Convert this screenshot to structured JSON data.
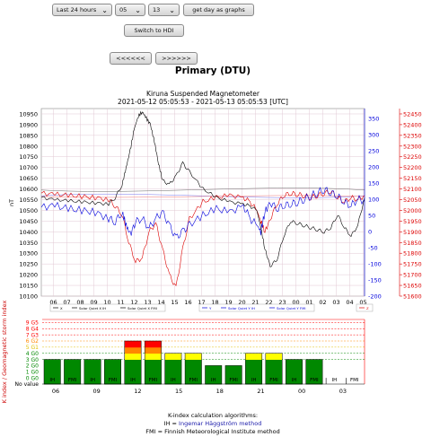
{
  "controls": {
    "range_select": "Last 24 hours",
    "hour_select": "05",
    "day_select": "13",
    "graph_button": "get day as graphs",
    "hdi_button": "Switch to HDI",
    "prev_button": "<<<<<<",
    "next_button": ">>>>>>"
  },
  "heading": "Primary (DTU)",
  "chart_data": [
    {
      "type": "line",
      "title": "Kiruna Suspended Magnetometer",
      "subtitle": "2021-05-12 05:05:53 - 2021-05-13 05:05:53 [UTC]",
      "ylabel": "nT",
      "x_ticks": [
        "06",
        "07",
        "08",
        "09",
        "10",
        "11",
        "12",
        "13",
        "14",
        "15",
        "16",
        "17",
        "18",
        "19",
        "20",
        "21",
        "22",
        "23",
        "00",
        "01",
        "02",
        "03",
        "04",
        "05"
      ],
      "y_left": {
        "ticks": [
          10100,
          10150,
          10200,
          10250,
          10300,
          10350,
          10400,
          10450,
          10500,
          10550,
          10600,
          10650,
          10700,
          10750,
          10800,
          10850,
          10900,
          10950
        ],
        "color": "#000000"
      },
      "y_mid": {
        "ticks": [
          -200,
          -150,
          -100,
          -50,
          0,
          50,
          100,
          150,
          200,
          250,
          300,
          350
        ],
        "color": "#0000dd"
      },
      "y_right": {
        "ticks": [
          51600,
          51650,
          51700,
          51750,
          51800,
          51850,
          51900,
          51950,
          52000,
          52050,
          52100,
          52150,
          52200,
          52250,
          52300,
          52350,
          52400,
          52450
        ],
        "color": "#dd0000"
      },
      "legend": [
        {
          "label": "X",
          "color": "#000000"
        },
        {
          "label": "Solar Quiet X IH",
          "color": "#000000"
        },
        {
          "label": "Solar Quiet X FMI",
          "color": "#000000"
        },
        {
          "label": "Y",
          "color": "#0000dd"
        },
        {
          "label": "Solar Quiet Y IH",
          "color": "#0000dd"
        },
        {
          "label": "Solar Quiet Y FMI",
          "color": "#0000dd"
        },
        {
          "label": "Z",
          "color": "#dd0000"
        }
      ],
      "series": {
        "x": {
          "color": "#000000",
          "hours": [
            0,
            1,
            2,
            3,
            4,
            5,
            5.5,
            6,
            6.3,
            6.6,
            6.9,
            7.2,
            7.5,
            7.8,
            8.1,
            8.4,
            8.7,
            9,
            9.5,
            10,
            10.5,
            11,
            12,
            13,
            14,
            15,
            15.5,
            16,
            16.3,
            16.6,
            17,
            17.5,
            18,
            18.5,
            19,
            19.5,
            20,
            20.5,
            21,
            21.5,
            22,
            22.5,
            23,
            23.5,
            24
          ],
          "values": [
            10560,
            10550,
            10545,
            10540,
            10535,
            10530,
            10560,
            10620,
            10700,
            10780,
            10880,
            10940,
            10960,
            10930,
            10900,
            10820,
            10720,
            10640,
            10620,
            10660,
            10720,
            10680,
            10600,
            10560,
            10540,
            10530,
            10520,
            10500,
            10420,
            10320,
            10240,
            10270,
            10380,
            10450,
            10440,
            10430,
            10420,
            10410,
            10400,
            10420,
            10480,
            10420,
            10380,
            10430,
            10560
          ]
        },
        "y": {
          "color": "#0000dd",
          "hours": [
            0,
            1,
            2,
            3,
            4,
            5,
            5.5,
            6,
            6.3,
            6.6,
            7,
            7.5,
            8,
            8.5,
            9,
            9.5,
            10,
            10.5,
            11,
            12,
            13,
            14,
            15,
            15.5,
            16,
            16.3,
            16.6,
            17,
            17.5,
            18,
            18.5,
            19,
            19.5,
            20,
            20.5,
            21,
            21.5,
            22,
            22.5,
            23,
            23.5,
            24
          ],
          "values": [
            75,
            80,
            70,
            65,
            60,
            40,
            30,
            60,
            20,
            -10,
            30,
            40,
            10,
            40,
            60,
            20,
            -20,
            0,
            20,
            50,
            70,
            60,
            80,
            40,
            20,
            0,
            60,
            90,
            70,
            80,
            85,
            90,
            100,
            110,
            120,
            130,
            120,
            110,
            90,
            80,
            100,
            95
          ]
        },
        "z": {
          "color": "#dd0000",
          "hours": [
            0,
            1,
            2,
            3,
            4,
            5,
            5.5,
            6,
            6.5,
            7,
            7.5,
            8,
            8.5,
            9,
            9.5,
            10,
            10.5,
            11,
            12,
            13,
            14,
            15,
            15.5,
            16,
            16.3,
            16.6,
            17,
            17.5,
            18,
            18.5,
            19,
            19.5,
            20,
            20.5,
            21,
            21.5,
            22,
            22.5,
            23,
            23.5,
            24
          ],
          "values": [
            52080,
            52075,
            52070,
            52065,
            52060,
            52050,
            52020,
            51980,
            51850,
            51760,
            51780,
            51900,
            51940,
            51820,
            51700,
            51640,
            51820,
            51960,
            52040,
            52060,
            52070,
            52060,
            52040,
            52000,
            51950,
            51900,
            51960,
            52030,
            52070,
            52080,
            52075,
            52070,
            52060,
            52070,
            52080,
            52090,
            52060,
            52040,
            52060,
            52050,
            52070
          ]
        }
      },
      "quiet_curves": {
        "x_ih_level": 10595,
        "y_ih_level": 110,
        "z_ih_level": 52065
      }
    },
    {
      "type": "bar",
      "ylabel": "K index / Geomagnetic storm index",
      "y_ticks": [
        "No value",
        "0",
        "1",
        "2",
        "3",
        "4",
        "5",
        "6",
        "7",
        "8",
        "9"
      ],
      "y_tick_labels": [
        "No value",
        "0 G0",
        "1 G0",
        "2 G0",
        "3 G0",
        "4 G0",
        "5 G1",
        "6 G2",
        "7 G3",
        "8 G4",
        "9 G5"
      ],
      "x_ticks": [
        "06",
        "09",
        "12",
        "15",
        "18",
        "21",
        "00",
        "03"
      ],
      "bars": [
        {
          "k": 4,
          "method": "IH"
        },
        {
          "k": 4,
          "method": "FMI"
        },
        {
          "k": 4,
          "method": "IH"
        },
        {
          "k": 4,
          "method": "FMI"
        },
        {
          "k": 7,
          "method": "IH"
        },
        {
          "k": 7,
          "method": "FMI"
        },
        {
          "k": 5,
          "method": "IH"
        },
        {
          "k": 5,
          "method": "FMI"
        },
        {
          "k": 3,
          "method": "IH"
        },
        {
          "k": 3,
          "method": "FMI"
        },
        {
          "k": 5,
          "method": "IH"
        },
        {
          "k": 5,
          "method": "FMI"
        },
        {
          "k": 4,
          "method": "IH"
        },
        {
          "k": 4,
          "method": "FMI"
        },
        {
          "k": 0,
          "method": "IH"
        },
        {
          "k": 0,
          "method": "FMI"
        }
      ],
      "colors": {
        "quiet": "#008800",
        "moderate": "#ffff00",
        "storm": "#ff8800",
        "strong": "#ff0000"
      }
    }
  ],
  "footer": {
    "line1": "K-index calculation algorithms:",
    "line2_prefix": "IH = ",
    "line2_link": "Ingemar Häggström method",
    "line3": "FMI = Finnish Meteorological Institute method"
  }
}
